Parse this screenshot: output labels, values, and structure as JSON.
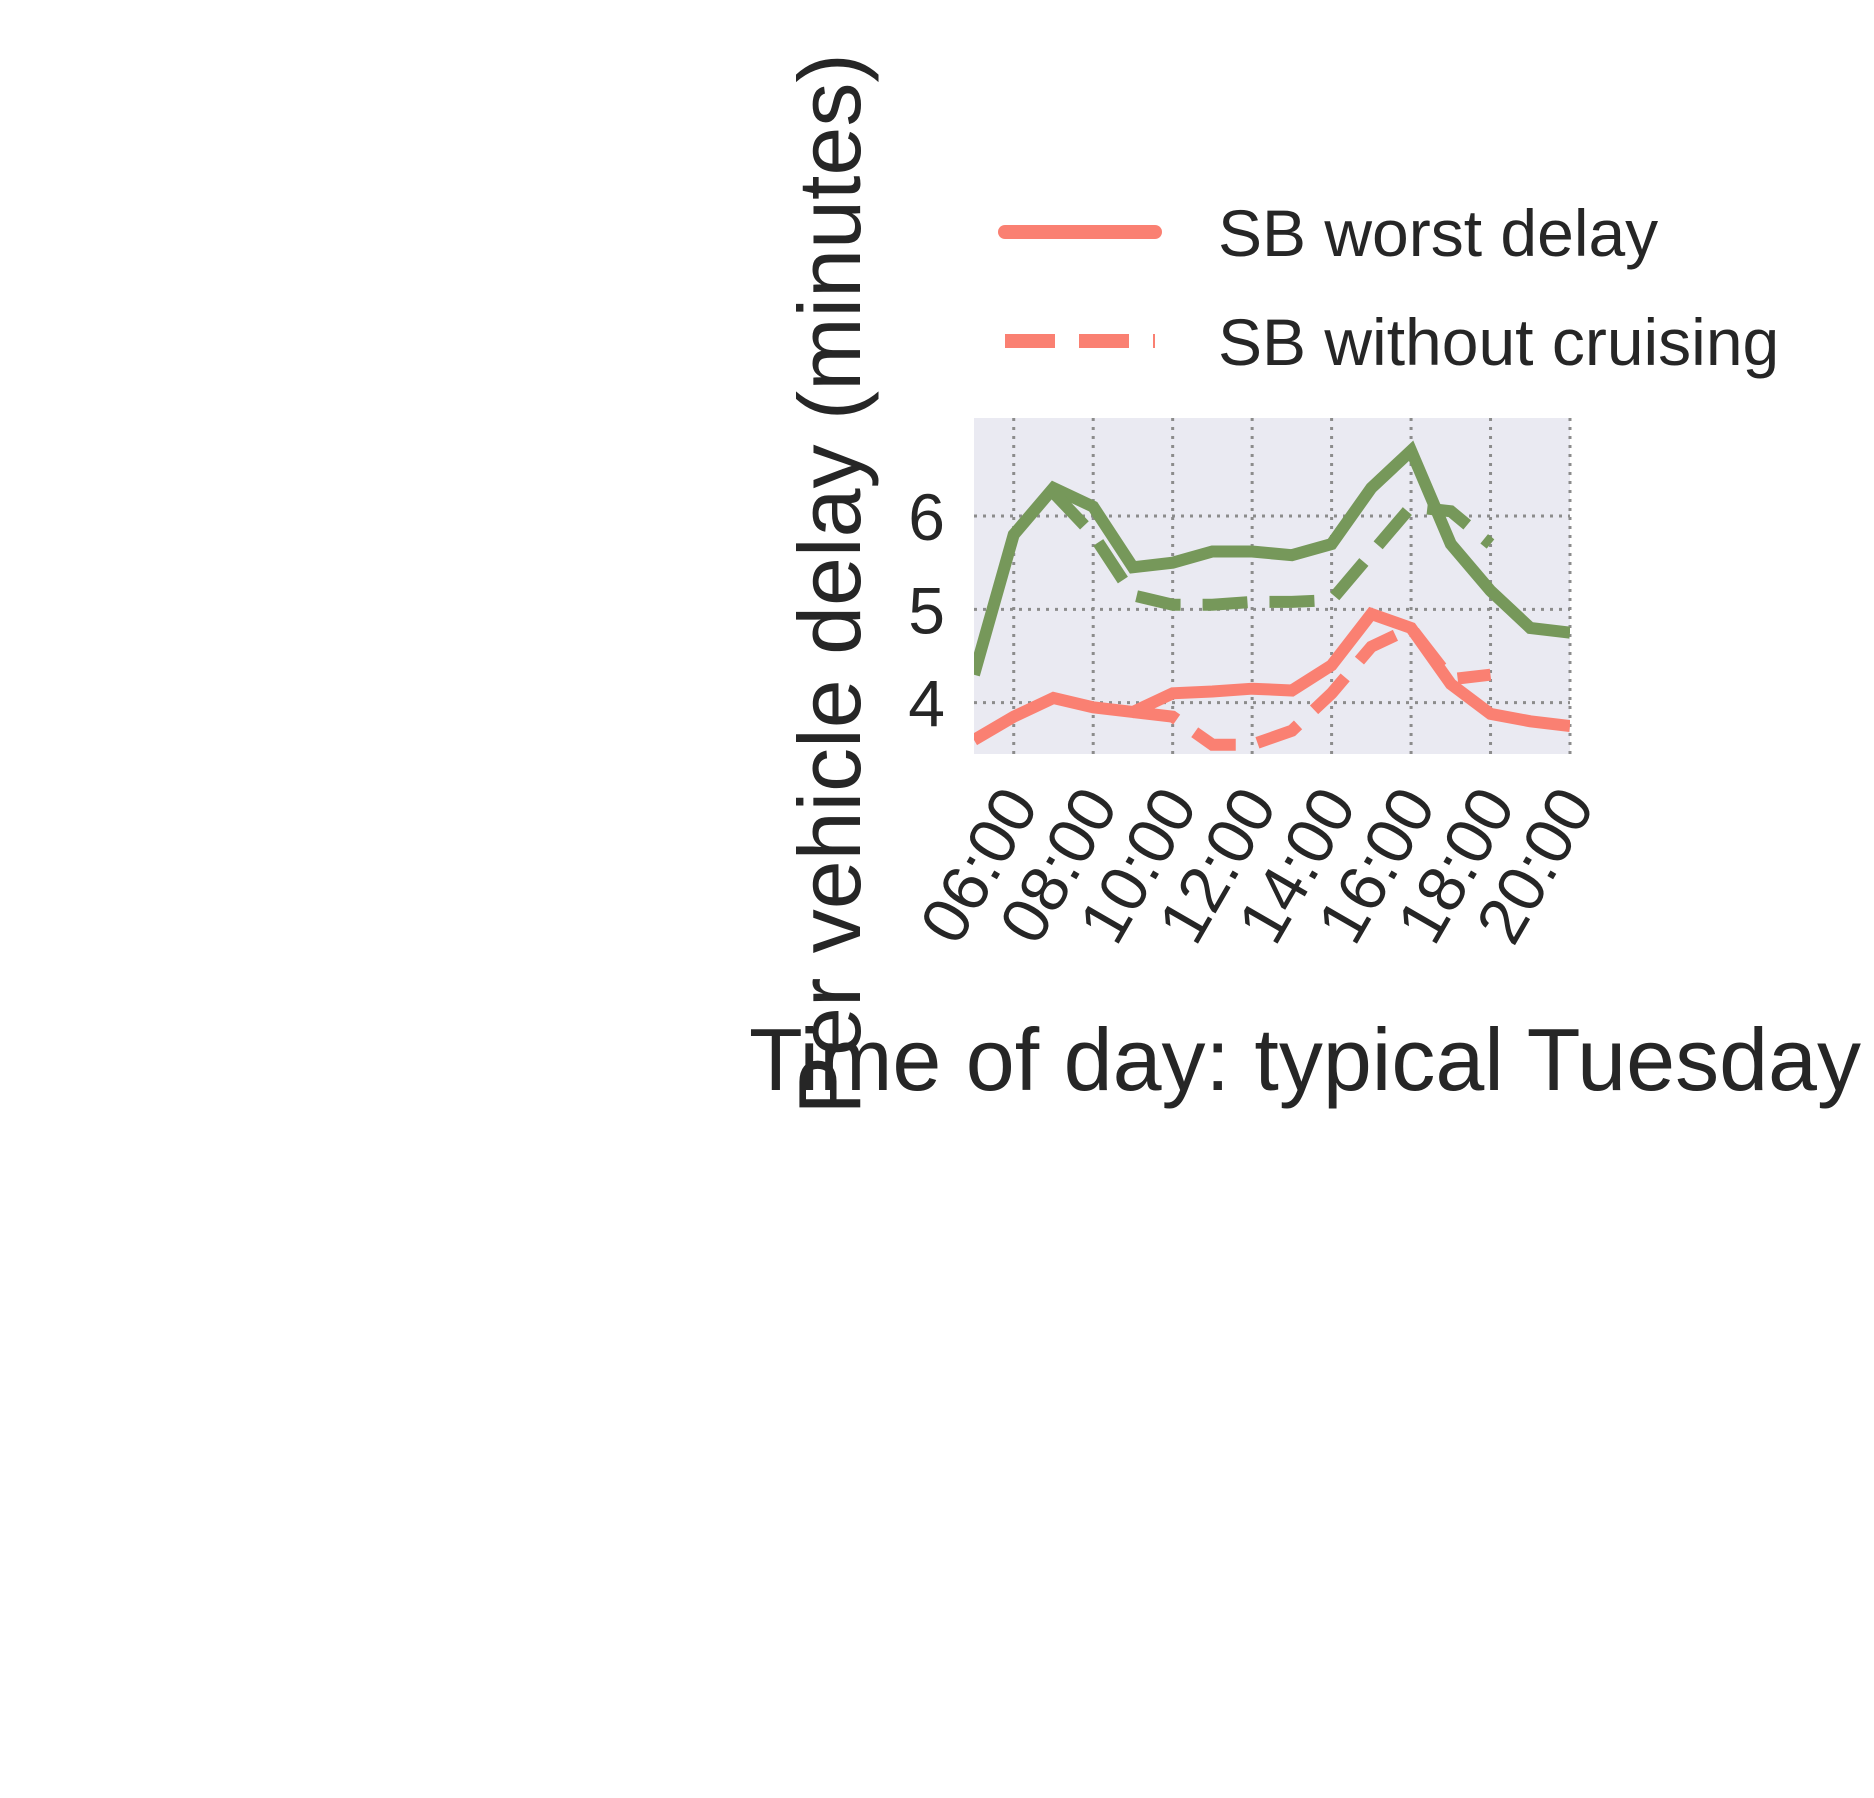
{
  "chart_data": {
    "type": "line",
    "title": "",
    "xlabel": "Time of day: typical Tuesday",
    "ylabel": "Per vehicle delay (minutes)",
    "x_ticks": [
      "06:00",
      "08:00",
      "10:00",
      "12:00",
      "14:00",
      "16:00",
      "18:00",
      "20:00"
    ],
    "xlim": [
      "05:00",
      "20:00"
    ],
    "ylim": [
      3.45,
      7.05
    ],
    "y_ticks": [
      4,
      5,
      6
    ],
    "grid": true,
    "grid_style": "dotted",
    "legend_position": "above-right",
    "series": [
      {
        "name": "SB worst delay",
        "color": "#fa8072",
        "style": "solid",
        "x": [
          "05:00",
          "06:00",
          "07:00",
          "08:00",
          "09:00",
          "10:00",
          "11:00",
          "12:00",
          "13:00",
          "14:00",
          "15:00",
          "16:00",
          "17:00",
          "18:00",
          "19:00",
          "20:00"
        ],
        "y": [
          3.6,
          3.85,
          4.05,
          3.95,
          3.9,
          4.1,
          4.12,
          4.15,
          4.13,
          4.4,
          4.95,
          4.8,
          4.2,
          3.88,
          3.8,
          3.75
        ]
      },
      {
        "name": "SB without cruising",
        "color": "#fa8072",
        "style": "dashed",
        "x": [
          "09:00",
          "10:00",
          "11:00",
          "12:00",
          "13:00",
          "14:00",
          "15:00",
          "16:00",
          "17:00",
          "18:00"
        ],
        "y": [
          3.9,
          3.85,
          3.55,
          3.55,
          3.7,
          4.1,
          4.6,
          4.8,
          4.25,
          4.3
        ]
      },
      {
        "color": "#76985a",
        "style": "solid",
        "x": [
          "05:00",
          "06:00",
          "07:00",
          "08:00",
          "09:00",
          "10:00",
          "11:00",
          "12:00",
          "13:00",
          "14:00",
          "15:00",
          "16:00",
          "17:00",
          "18:00",
          "19:00",
          "20:00"
        ],
        "y": [
          4.3,
          5.8,
          6.3,
          6.1,
          5.45,
          5.5,
          5.62,
          5.62,
          5.58,
          5.7,
          6.3,
          6.7,
          5.7,
          5.2,
          4.8,
          4.75
        ]
      },
      {
        "color": "#76985a",
        "style": "dashed",
        "x": [
          "07:00",
          "08:00",
          "09:00",
          "10:00",
          "11:00",
          "12:00",
          "13:00",
          "14:00",
          "15:00",
          "16:00",
          "17:00",
          "18:00"
        ],
        "y": [
          6.25,
          5.8,
          5.15,
          5.05,
          5.05,
          5.08,
          5.08,
          5.1,
          5.6,
          6.1,
          6.05,
          5.7
        ]
      }
    ]
  }
}
